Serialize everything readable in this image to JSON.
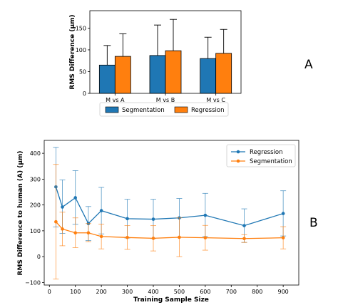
{
  "panel_a_label": "A",
  "panel_b_label": "B",
  "chart_data": [
    {
      "type": "bar",
      "panel": "A",
      "ylabel": "RMS Difference (μm)",
      "xlabel": "",
      "ylim": [
        0,
        190
      ],
      "yticks": [
        0,
        50,
        100,
        150
      ],
      "categories": [
        "M vs A",
        "M vs B",
        "M vs C"
      ],
      "series": [
        {
          "name": "Segmentation",
          "color": "#1f77b4",
          "values": [
            65,
            87,
            80
          ],
          "err_upper": [
            110,
            157,
            129
          ]
        },
        {
          "name": "Regression",
          "color": "#ff7f0e",
          "values": [
            85,
            98,
            92
          ],
          "err_upper": [
            137,
            170,
            147
          ]
        }
      ],
      "error_bars": "upper",
      "legend_placement": "below",
      "grid": false
    },
    {
      "type": "line",
      "panel": "B",
      "xlabel": "Training Sample Size",
      "ylabel": "RMS Difference to human (A) (μm)",
      "xlim": [
        -20,
        960
      ],
      "ylim": [
        -110,
        450
      ],
      "xticks": [
        0,
        100,
        200,
        300,
        400,
        500,
        600,
        700,
        800,
        900
      ],
      "yticks": [
        -100,
        0,
        100,
        200,
        300,
        400
      ],
      "x": [
        25,
        50,
        100,
        150,
        200,
        300,
        400,
        500,
        600,
        750,
        900
      ],
      "series": [
        {
          "name": "Regression",
          "color": "#1f77b4",
          "values": [
            270,
            192,
            228,
            128,
            178,
            147,
            145,
            150,
            160,
            120,
            167
          ],
          "err_low": [
            115,
            90,
            125,
            62,
            88,
            72,
            70,
            75,
            78,
            55,
            80
          ],
          "err_high": [
            423,
            297,
            333,
            194,
            268,
            222,
            222,
            225,
            245,
            185,
            255
          ]
        },
        {
          "name": "Segmentation",
          "color": "#ff7f0e",
          "values": [
            135,
            107,
            92,
            92,
            78,
            74,
            71,
            75,
            73,
            70,
            73
          ],
          "err_low": [
            -87,
            42,
            35,
            58,
            30,
            28,
            22,
            0,
            25,
            55,
            30
          ],
          "err_high": [
            357,
            172,
            150,
            128,
            126,
            120,
            120,
            150,
            121,
            85,
            116
          ]
        }
      ],
      "markers": "circle",
      "legend_placement": "upper-right",
      "grid": false
    }
  ]
}
